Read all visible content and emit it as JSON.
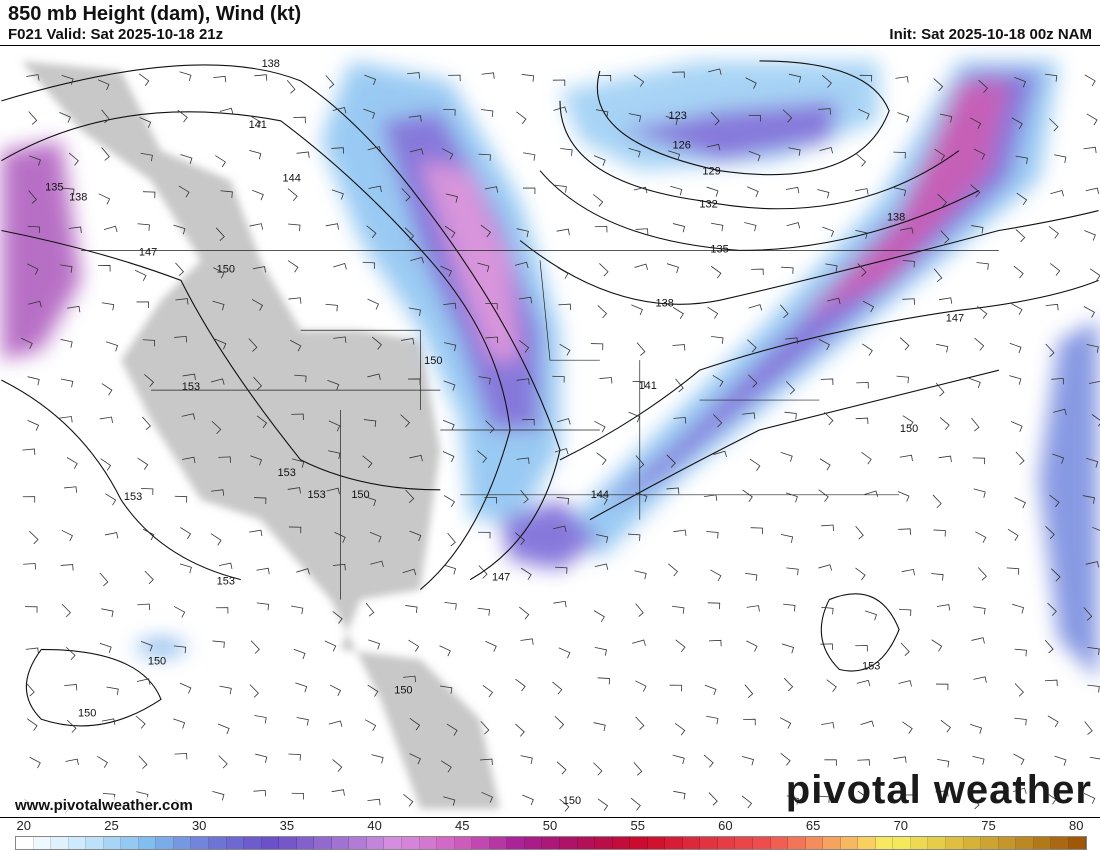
{
  "header": {
    "title": "850 mb Height (dam), Wind (kt)",
    "valid": "F021 Valid: Sat 2025-10-18 21z",
    "init": "Init: Sat 2025-10-18 00z NAM"
  },
  "footer": {
    "url": "www.pivotalweather.com",
    "logo": "pivotal weather"
  },
  "colorbar": {
    "min": 20,
    "max": 80,
    "ticks": [
      "20",
      "25",
      "30",
      "35",
      "40",
      "45",
      "50",
      "55",
      "60",
      "65",
      "70",
      "75",
      "80"
    ],
    "stops": [
      "#ffffff",
      "#c6e6fb",
      "#7fbdef",
      "#6f78d8",
      "#6a4fc8",
      "#9a6fd0",
      "#d88fe0",
      "#d060c0",
      "#a81f95",
      "#b0105a",
      "#cc0a2a",
      "#e03240",
      "#f05050",
      "#f7a060",
      "#f8f060",
      "#e0c040",
      "#c09028",
      "#a05808"
    ]
  },
  "contours": [
    {
      "label": "138"
    },
    {
      "label": "141"
    },
    {
      "label": "144"
    },
    {
      "label": "135"
    },
    {
      "label": "138"
    },
    {
      "label": "147"
    },
    {
      "label": "150"
    },
    {
      "label": "153"
    },
    {
      "label": "153"
    },
    {
      "label": "153"
    },
    {
      "label": "153"
    },
    {
      "label": "153"
    },
    {
      "label": "150"
    },
    {
      "label": "150"
    },
    {
      "label": "147"
    },
    {
      "label": "144"
    },
    {
      "label": "141"
    },
    {
      "label": "138"
    },
    {
      "label": "135"
    },
    {
      "label": "132"
    },
    {
      "label": "129"
    },
    {
      "label": "126"
    },
    {
      "label": "123"
    },
    {
      "label": "138"
    },
    {
      "label": "147"
    },
    {
      "label": "150"
    },
    {
      "label": "153"
    },
    {
      "label": "150"
    },
    {
      "label": "150"
    },
    {
      "label": "150"
    },
    {
      "label": "150"
    }
  ]
}
